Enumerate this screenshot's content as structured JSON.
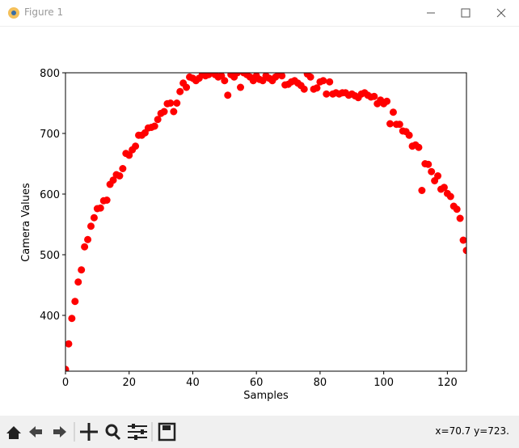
{
  "window": {
    "title": "Figure 1",
    "status": "x=70.7 y=723."
  },
  "chart_data": {
    "type": "scatter",
    "xlabel": "Samples",
    "ylabel": "Camera Values",
    "color": "#ff0000",
    "x": [
      0,
      1,
      2,
      3,
      4,
      5,
      6,
      7,
      8,
      9,
      10,
      11,
      12,
      13,
      14,
      15,
      16,
      17,
      18,
      19,
      20,
      21,
      22,
      23,
      24,
      25,
      26,
      27,
      28,
      29,
      30,
      31,
      32,
      33,
      34,
      35,
      36,
      37,
      38,
      39,
      40,
      41,
      42,
      43,
      44,
      45,
      46,
      47,
      48,
      49,
      50,
      51,
      52,
      53,
      54,
      55,
      56,
      57,
      58,
      59,
      60,
      61,
      62,
      63,
      64,
      65,
      66,
      67,
      68,
      69,
      70,
      71,
      72,
      73,
      74,
      75,
      76,
      77,
      78,
      79,
      80,
      81,
      82,
      83,
      84,
      85,
      86,
      87,
      88,
      89,
      90,
      91,
      92,
      93,
      94,
      95,
      96,
      97,
      98,
      99,
      100,
      101,
      102,
      103,
      104,
      105,
      106,
      107,
      108,
      109,
      110,
      111,
      112,
      113,
      114,
      115,
      116,
      117,
      118,
      119,
      120,
      121,
      122,
      123,
      124,
      125,
      126
    ],
    "values": [
      311,
      353,
      395,
      423,
      455,
      475,
      513,
      525,
      547,
      561,
      576,
      577,
      589,
      590,
      616,
      623,
      632,
      630,
      642,
      667,
      664,
      673,
      679,
      697,
      697,
      701,
      709,
      710,
      712,
      723,
      733,
      736,
      749,
      750,
      736,
      750,
      769,
      783,
      776,
      793,
      791,
      787,
      791,
      797,
      795,
      797,
      800,
      797,
      793,
      795,
      787,
      763,
      797,
      793,
      800,
      776,
      800,
      797,
      793,
      787,
      795,
      789,
      787,
      795,
      791,
      787,
      793,
      800,
      795,
      780,
      781,
      785,
      787,
      783,
      779,
      773,
      798,
      793,
      773,
      775,
      785,
      787,
      765,
      785,
      765,
      767,
      765,
      767,
      767,
      763,
      765,
      762,
      759,
      765,
      767,
      763,
      760,
      761,
      749,
      755,
      749,
      753,
      716,
      735,
      715,
      715,
      704,
      703,
      697,
      679,
      681,
      677,
      606,
      650,
      649,
      637,
      622,
      630,
      608,
      611,
      601,
      596,
      580,
      575,
      560,
      524,
      507
    ],
    "xlim": [
      0,
      126
    ],
    "ylim": [
      308,
      800
    ],
    "xticks": [
      0,
      20,
      40,
      60,
      80,
      100,
      120
    ],
    "yticks": [
      400,
      500,
      600,
      700,
      800
    ]
  }
}
